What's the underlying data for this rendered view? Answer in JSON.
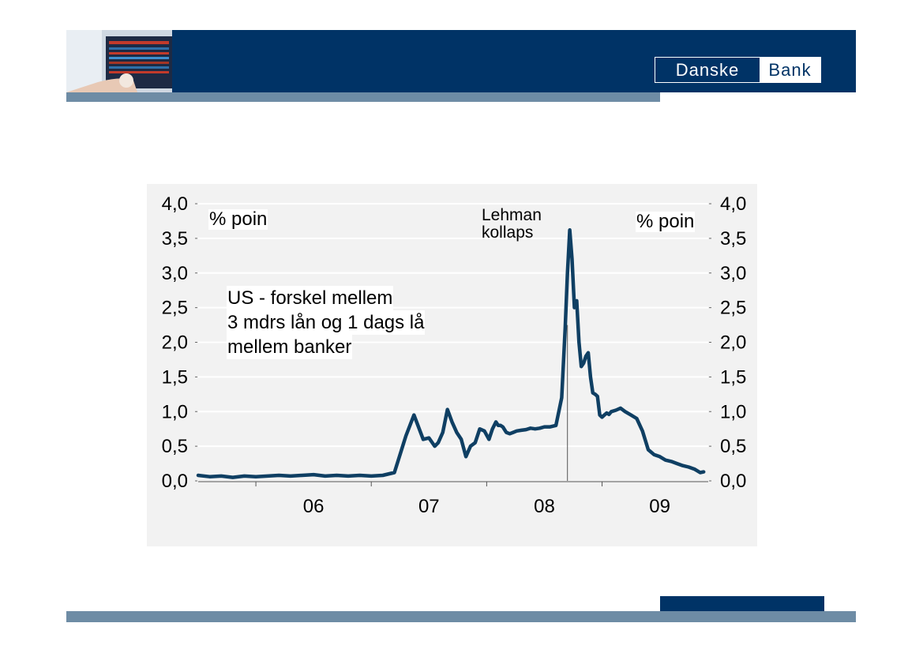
{
  "header": {
    "logo_left": "Danske",
    "logo_right": "Bank",
    "colors": {
      "navy": "#003366",
      "stripe": "#6e8ca5"
    }
  },
  "chart_data": {
    "type": "line",
    "y_left_label": "% poin",
    "y_right_label": "% poin",
    "annotation": [
      "Lehman",
      "kollaps"
    ],
    "description": [
      "US - forskel mellem",
      "3 mdrs lån og 1 dags lå",
      "mellem banker"
    ],
    "ylim": [
      0,
      4
    ],
    "yticks": [
      0,
      0.5,
      1,
      1.5,
      2,
      2.5,
      3,
      3.5,
      4
    ],
    "ytick_labels": [
      "0,0",
      "0,5",
      "1,0",
      "1,5",
      "2,0",
      "2,5",
      "3,0",
      "3,5",
      "4,0"
    ],
    "x_range": [
      2005.5,
      2009.92
    ],
    "x_ticks": [
      2006.0,
      2007.0,
      2008.0,
      2009.0
    ],
    "x_category_labels": [
      "06",
      "07",
      "08",
      "09"
    ],
    "grid": true,
    "event_x": 2008.7,
    "series_color": "#0f3f63",
    "x": [
      2005.5,
      2005.6,
      2005.7,
      2005.8,
      2005.9,
      2006.0,
      2006.1,
      2006.2,
      2006.3,
      2006.4,
      2006.5,
      2006.6,
      2006.7,
      2006.8,
      2006.9,
      2007.0,
      2007.1,
      2007.2,
      2007.3,
      2007.37,
      2007.45,
      2007.5,
      2007.55,
      2007.58,
      2007.62,
      2007.66,
      2007.7,
      2007.74,
      2007.78,
      2007.82,
      2007.86,
      2007.9,
      2007.94,
      2007.98,
      2008.02,
      2008.05,
      2008.08,
      2008.1,
      2008.12,
      2008.14,
      2008.17,
      2008.2,
      2008.23,
      2008.26,
      2008.3,
      2008.34,
      2008.38,
      2008.42,
      2008.46,
      2008.5,
      2008.55,
      2008.6,
      2008.65,
      2008.68,
      2008.7,
      2008.72,
      2008.74,
      2008.76,
      2008.78,
      2008.8,
      2008.82,
      2008.84,
      2008.86,
      2008.88,
      2008.9,
      2008.92,
      2008.94,
      2008.96,
      2008.98,
      2009.0,
      2009.02,
      2009.04,
      2009.06,
      2009.08,
      2009.12,
      2009.16,
      2009.2,
      2009.25,
      2009.3,
      2009.35,
      2009.4,
      2009.45,
      2009.5,
      2009.55,
      2009.6,
      2009.65,
      2009.7,
      2009.75,
      2009.8,
      2009.85,
      2009.88
    ],
    "y": [
      0.08,
      0.06,
      0.07,
      0.05,
      0.07,
      0.06,
      0.07,
      0.08,
      0.07,
      0.08,
      0.09,
      0.07,
      0.08,
      0.07,
      0.08,
      0.07,
      0.08,
      0.12,
      0.65,
      0.95,
      0.6,
      0.62,
      0.5,
      0.55,
      0.7,
      1.03,
      0.85,
      0.7,
      0.6,
      0.35,
      0.5,
      0.55,
      0.75,
      0.72,
      0.6,
      0.75,
      0.85,
      0.8,
      0.8,
      0.78,
      0.7,
      0.68,
      0.7,
      0.72,
      0.73,
      0.74,
      0.76,
      0.75,
      0.76,
      0.78,
      0.78,
      0.8,
      1.2,
      2.2,
      3.0,
      3.62,
      3.2,
      2.5,
      2.6,
      2.0,
      1.65,
      1.7,
      1.8,
      1.85,
      1.5,
      1.27,
      1.25,
      1.22,
      0.95,
      0.92,
      0.95,
      0.98,
      0.96,
      1.0,
      1.02,
      1.05,
      1.0,
      0.95,
      0.9,
      0.72,
      0.45,
      0.38,
      0.35,
      0.3,
      0.28,
      0.25,
      0.22,
      0.2,
      0.17,
      0.12,
      0.13
    ]
  }
}
